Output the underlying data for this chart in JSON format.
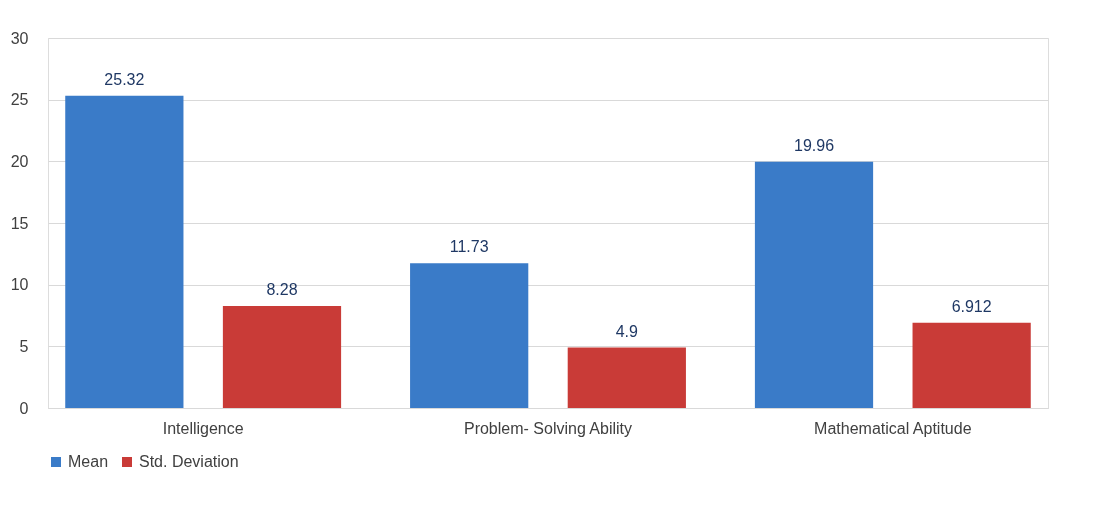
{
  "chart_data": {
    "type": "bar",
    "categories": [
      "Intelligence",
      "Problem- Solving Ability",
      "Mathematical  Aptitude"
    ],
    "series": [
      {
        "name": "Mean",
        "color": "#3a7bc8",
        "values": [
          25.32,
          11.73,
          19.96
        ]
      },
      {
        "name": "Std. Deviation",
        "color": "#c93b37",
        "values": [
          8.28,
          4.9,
          6.912
        ]
      }
    ],
    "ylim": [
      0,
      30
    ],
    "yticks": [
      0,
      5,
      10,
      15,
      20,
      25,
      30
    ],
    "grid": "y",
    "legend": "bottom",
    "data_labels": true
  }
}
